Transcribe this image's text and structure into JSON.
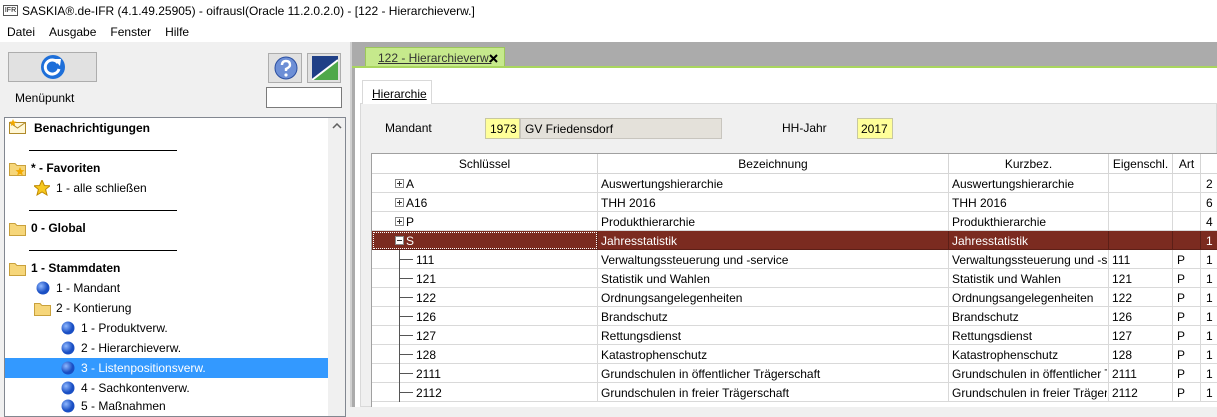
{
  "title_bar": {
    "icon": "IFR",
    "title": "SASKIA®.de-IFR (4.1.49.25905) - oifrausl(Oracle 11.2.0.2.0) - [122 - Hierarchieverw.]"
  },
  "menu": [
    "Datei",
    "Ausgabe",
    "Fenster",
    "Hilfe"
  ],
  "sidebar": {
    "label": "Menüpunkt",
    "selected": 9,
    "tree": [
      {
        "label": "Benachrichtigungen",
        "kind": "notification",
        "level": 0,
        "bold": true
      },
      {
        "label": "* - Favoriten",
        "kind": "favorites",
        "level": 0,
        "bold": true
      },
      {
        "label": "1 - alle schließen",
        "kind": "star",
        "level": 0,
        "bold": false
      },
      {
        "label": "0 - Global",
        "kind": "folder",
        "level": 0,
        "bold": true
      },
      {
        "label": "1 - Stammdaten",
        "kind": "folder",
        "level": 0,
        "bold": true
      },
      {
        "label": "1 - Mandant",
        "kind": "circle",
        "level": 1,
        "bold": false
      },
      {
        "label": "2 - Kontierung",
        "kind": "folder",
        "level": 1,
        "bold": false
      },
      {
        "label": "1 - Produktverw.",
        "kind": "circle",
        "level": 2,
        "bold": false
      },
      {
        "label": "2 - Hierarchieverw.",
        "kind": "circle",
        "level": 2,
        "bold": false
      },
      {
        "label": "3 - Listenpositionsverw.",
        "kind": "circle",
        "level": 2,
        "bold": false
      },
      {
        "label": "4 - Sachkontenverw.",
        "kind": "circle",
        "level": 2,
        "bold": false
      },
      {
        "label": "5 - Maßnahmen",
        "kind": "circle",
        "level": 2,
        "bold": false
      }
    ]
  },
  "document_tab": "122 - Hierarchieverw.",
  "inner_tab": "Hierarchie",
  "form": {
    "mandant_label": "Mandant",
    "mandant_nr": "1973",
    "mandant_name": "GV Friedensdorf",
    "year_label": "HH-Jahr",
    "year": "2017"
  },
  "table": {
    "columns": [
      "Schlüssel",
      "Bezeichnung",
      "Kurzbez.",
      "Eigenschl.",
      "Art"
    ],
    "selected_row": 3,
    "rows": [
      {
        "key": "A",
        "level": 0,
        "expanded": false,
        "bezeichnung": "Auswertungshierarchie",
        "kurzbez": "Auswertungshierarchie",
        "last": 2
      },
      {
        "key": "A16",
        "level": 0,
        "expanded": false,
        "bezeichnung": "THH 2016",
        "kurzbez": "THH 2016",
        "last": 6
      },
      {
        "key": "P",
        "level": 0,
        "expanded": false,
        "bezeichnung": "Produkthierarchie",
        "kurzbez": "Produkthierarchie",
        "last": 4
      },
      {
        "key": "S",
        "level": 0,
        "expanded": true,
        "bezeichnung": "Jahresstatistik",
        "kurzbez": "Jahresstatistik",
        "last": 1
      },
      {
        "key": "111",
        "level": 1,
        "bezeichnung": "Verwaltungssteuerung und -service",
        "kurzbez": "Verwaltungssteuerung und -serv",
        "eigenschl": "111",
        "art": "P",
        "last": 1
      },
      {
        "key": "121",
        "level": 1,
        "bezeichnung": "Statistik und Wahlen",
        "kurzbez": "Statistik und Wahlen",
        "eigenschl": "121",
        "art": "P",
        "last": 1
      },
      {
        "key": "122",
        "level": 1,
        "bezeichnung": "Ordnungsangelegenheiten",
        "kurzbez": "Ordnungsangelegenheiten",
        "eigenschl": "122",
        "art": "P",
        "last": 1
      },
      {
        "key": "126",
        "level": 1,
        "bezeichnung": "Brandschutz",
        "kurzbez": "Brandschutz",
        "eigenschl": "126",
        "art": "P",
        "last": 1
      },
      {
        "key": "127",
        "level": 1,
        "bezeichnung": "Rettungsdienst",
        "kurzbez": "Rettungsdienst",
        "eigenschl": "127",
        "art": "P",
        "last": 1
      },
      {
        "key": "128",
        "level": 1,
        "bezeichnung": "Katastrophenschutz",
        "kurzbez": "Katastrophenschutz",
        "eigenschl": "128",
        "art": "P",
        "last": 1
      },
      {
        "key": "2111",
        "level": 1,
        "bezeichnung": "Grundschulen in öffentlicher Trägerschaft",
        "kurzbez": "Grundschulen in öffentlicher T",
        "eigenschl": "2111",
        "art": "P",
        "last": 1
      },
      {
        "key": "2112",
        "level": 1,
        "bezeichnung": "Grundschulen in freier Trägerschaft",
        "kurzbez": "Grundschulen in freier Trägers",
        "eigenschl": "2112",
        "art": "P",
        "last": 1
      }
    ]
  }
}
